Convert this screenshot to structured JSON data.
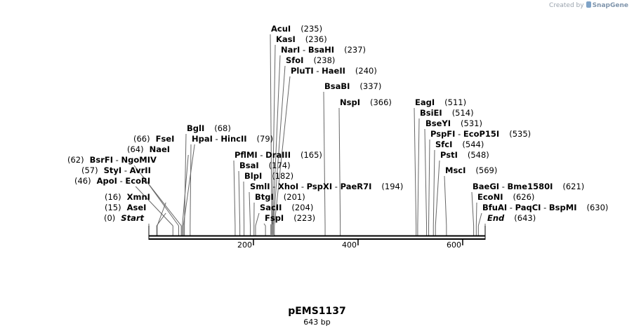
{
  "watermark": {
    "prefix": "Created by",
    "brand": "SnapGene"
  },
  "plasmid": {
    "name": "pEMS1137",
    "length_label": "643 bp",
    "length": 643
  },
  "chart_data": {
    "type": "restriction_map",
    "title": "pEMS1137",
    "subtitle": "643 bp",
    "axis": {
      "min": 0,
      "max": 643,
      "ticks": [
        200,
        400,
        600
      ]
    },
    "sites": [
      {
        "names": [
          "Start"
        ],
        "position": 0,
        "italic": true
      },
      {
        "names": [
          "AseI"
        ],
        "position": 15
      },
      {
        "names": [
          "XmnI"
        ],
        "position": 16
      },
      {
        "names": [
          "ApoI",
          "EcoRI"
        ],
        "position": 46
      },
      {
        "names": [
          "StyI",
          "AvrII"
        ],
        "position": 57
      },
      {
        "names": [
          "BsrFI",
          "NgoMIV"
        ],
        "position": 62
      },
      {
        "names": [
          "NaeI"
        ],
        "position": 64
      },
      {
        "names": [
          "FseI"
        ],
        "position": 66
      },
      {
        "names": [
          "BglI"
        ],
        "position": 68
      },
      {
        "names": [
          "HpaI",
          "HincII"
        ],
        "position": 79
      },
      {
        "names": [
          "PflMI",
          "DraIII"
        ],
        "position": 165
      },
      {
        "names": [
          "BsaI"
        ],
        "position": 174
      },
      {
        "names": [
          "BlpI"
        ],
        "position": 182
      },
      {
        "names": [
          "SmlI",
          "XhoI",
          "PspXI",
          "PaeR7I"
        ],
        "position": 194
      },
      {
        "names": [
          "BtgI"
        ],
        "position": 201
      },
      {
        "names": [
          "SacII"
        ],
        "position": 204
      },
      {
        "names": [
          "FspI"
        ],
        "position": 223
      },
      {
        "names": [
          "AcuI"
        ],
        "position": 235
      },
      {
        "names": [
          "KasI"
        ],
        "position": 236
      },
      {
        "names": [
          "NarI",
          "BsaHI"
        ],
        "position": 237
      },
      {
        "names": [
          "SfoI"
        ],
        "position": 238
      },
      {
        "names": [
          "PluTI",
          "HaeII"
        ],
        "position": 240
      },
      {
        "names": [
          "BsaBI"
        ],
        "position": 337
      },
      {
        "names": [
          "NspI"
        ],
        "position": 366
      },
      {
        "names": [
          "EagI"
        ],
        "position": 511
      },
      {
        "names": [
          "BsiEI"
        ],
        "position": 514
      },
      {
        "names": [
          "BseYI"
        ],
        "position": 531
      },
      {
        "names": [
          "PspFI",
          "EcoP15I"
        ],
        "position": 535
      },
      {
        "names": [
          "SfcI"
        ],
        "position": 544
      },
      {
        "names": [
          "PstI"
        ],
        "position": 548
      },
      {
        "names": [
          "MscI"
        ],
        "position": 569
      },
      {
        "names": [
          "BaeGI",
          "Bme1580I"
        ],
        "position": 621
      },
      {
        "names": [
          "EcoNI"
        ],
        "position": 626
      },
      {
        "names": [
          "BfuAI",
          "PaqCI",
          "BspMI"
        ],
        "position": 630
      },
      {
        "names": [
          "End"
        ],
        "position": 643,
        "italic": true
      }
    ]
  }
}
